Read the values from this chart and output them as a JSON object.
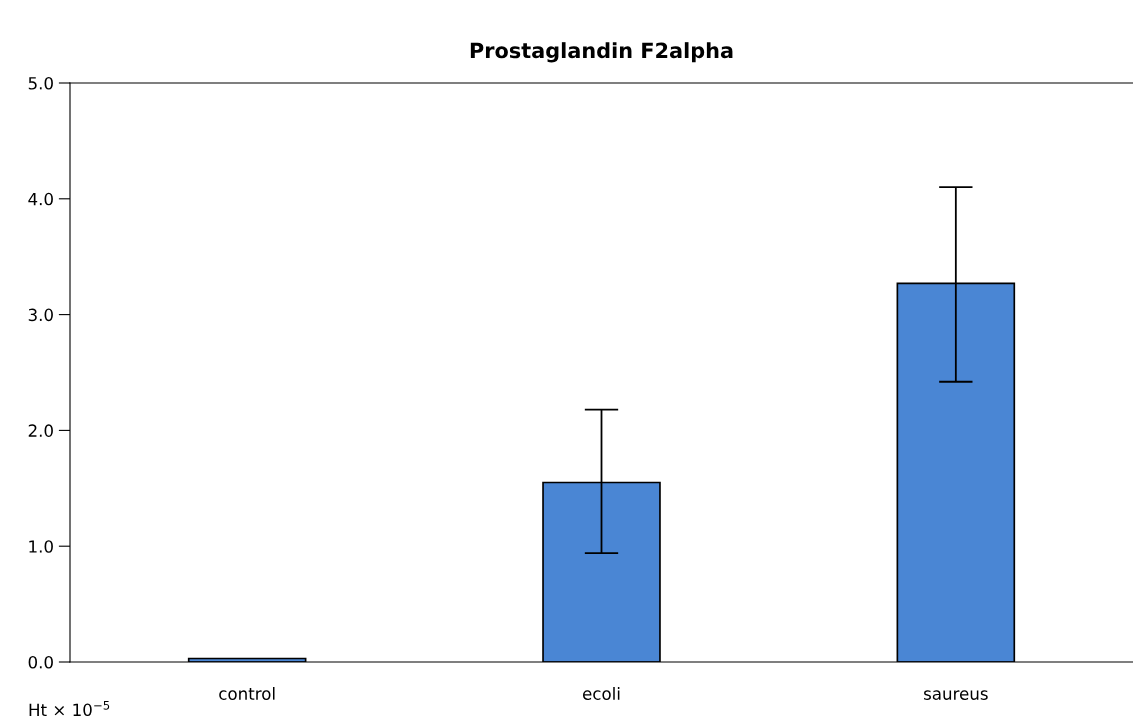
{
  "chart_data": {
    "type": "bar",
    "title": "Prostaglandin F2alpha",
    "ylabel": "Ht × 10$^{−5}$",
    "categories": [
      "control",
      "ecoli",
      "saureus"
    ],
    "values": [
      0.03,
      1.55,
      3.27
    ],
    "errors": [
      null,
      [
        0.94,
        2.18
      ],
      [
        2.42,
        4.1
      ]
    ],
    "color": "#4a86d4",
    "ylim": [
      0,
      5.0
    ],
    "yticks": [
      {
        "value": 0,
        "label": "0.0"
      },
      {
        "value": 1,
        "label": "1.0"
      },
      {
        "value": 2,
        "label": "2.0"
      },
      {
        "value": 3,
        "label": "3.0"
      },
      {
        "value": 4,
        "label": "4.0"
      },
      {
        "value": 5,
        "label": "5.0"
      }
    ],
    "grid": false,
    "legend": false
  }
}
